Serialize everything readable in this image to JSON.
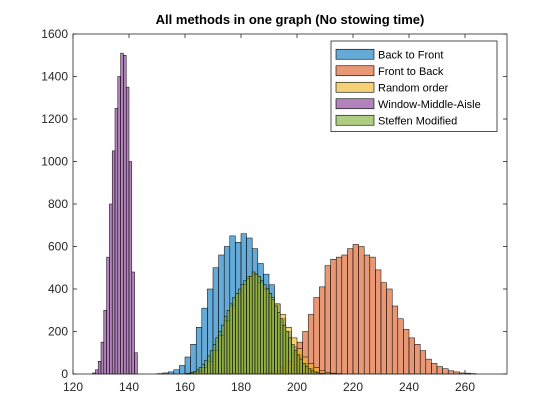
{
  "chart_data": {
    "type": "bar",
    "subtype": "overlaid-histogram",
    "title": "All methods in one graph (No stowing time)",
    "xlabel": "",
    "ylabel": "",
    "xlim": [
      120,
      275
    ],
    "ylim": [
      0,
      1600
    ],
    "xticks": [
      120,
      140,
      160,
      180,
      200,
      220,
      240,
      260
    ],
    "yticks": [
      0,
      200,
      400,
      600,
      800,
      1000,
      1200,
      1400,
      1600
    ],
    "legend_position": "top-right",
    "box": true,
    "grid": false,
    "bar_opacity": 0.6,
    "series": [
      {
        "name": "Back to Front",
        "color": "#0072BD",
        "bin_width": 2,
        "bins_start": 150,
        "values": [
          2,
          5,
          10,
          20,
          40,
          80,
          140,
          220,
          310,
          400,
          500,
          560,
          600,
          650,
          620,
          660,
          640,
          590,
          520,
          470,
          420,
          330,
          260,
          200,
          130,
          90,
          50,
          25,
          10,
          4,
          2
        ]
      },
      {
        "name": "Front to Back",
        "color": "#D95319",
        "bin_width": 2,
        "bins_start": 188,
        "values": [
          3,
          8,
          15,
          35,
          60,
          100,
          150,
          200,
          280,
          360,
          410,
          510,
          540,
          550,
          560,
          590,
          610,
          600,
          560,
          550,
          490,
          430,
          400,
          320,
          260,
          210,
          170,
          140,
          110,
          70,
          50,
          35,
          25,
          15,
          10,
          5,
          4,
          2
        ]
      },
      {
        "name": "Random order",
        "color": "#EDB120",
        "bin_width": 2,
        "bins_start": 160,
        "values": [
          2,
          5,
          12,
          30,
          60,
          110,
          180,
          250,
          320,
          380,
          420,
          460,
          470,
          430,
          400,
          360,
          330,
          280,
          220,
          170,
          120,
          80,
          50,
          30,
          15,
          8,
          4,
          2
        ]
      },
      {
        "name": "Window-Middle-Aisle",
        "color": "#7E2F8E",
        "bin_width": 1,
        "bins_start": 127,
        "values": [
          5,
          20,
          60,
          150,
          300,
          550,
          800,
          1050,
          1250,
          1400,
          1510,
          1500,
          1350,
          1000,
          480,
          100
        ]
      },
      {
        "name": "Steffen Modified",
        "color": "#77AC30",
        "bin_width": 1,
        "bins_start": 160,
        "values": [
          2,
          4,
          8,
          12,
          20,
          30,
          45,
          65,
          85,
          110,
          140,
          170,
          200,
          230,
          270,
          300,
          330,
          360,
          380,
          400,
          420,
          440,
          450,
          460,
          480,
          470,
          460,
          440,
          420,
          400,
          380,
          350,
          320,
          290,
          260,
          230,
          200,
          170,
          140,
          110,
          90,
          70,
          50,
          35,
          25,
          15,
          10,
          6,
          3,
          2
        ]
      }
    ]
  }
}
